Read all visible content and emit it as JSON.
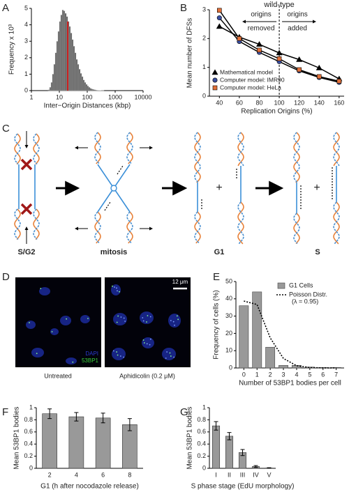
{
  "panel_labels": [
    "A",
    "B",
    "C",
    "D",
    "E",
    "F",
    "G"
  ],
  "diagram": {
    "stages": [
      "S/G2",
      "mitosis",
      "G1",
      "S"
    ],
    "plus": [
      "+",
      "+"
    ]
  },
  "micrographs": {
    "stains": [
      "DAPI",
      "53BP1"
    ],
    "scale_bar": "12 μm",
    "captions": [
      "Untreated",
      "Aphidicolin (0.2 μM)"
    ]
  },
  "chart_data": [
    {
      "type": "histogram",
      "xlabel": "Inter−Origin Distances (kbp)",
      "ylabel": "Frequency x 10³",
      "bins": [
        3.98,
        4.47,
        5.01,
        5.62,
        6.31,
        7.08,
        7.94,
        8.91,
        10.0,
        11.2,
        12.6,
        14.1,
        15.8,
        17.8,
        20.0,
        22.4,
        25.1,
        28.2,
        31.6,
        35.5,
        39.8,
        44.7,
        50.1,
        56.2,
        63.1,
        70.8,
        79.4,
        89.1,
        100,
        112,
        126,
        141,
        158,
        178,
        200,
        224,
        251,
        282,
        316,
        355,
        398
      ],
      "counts": [
        0.05,
        0.2,
        0.5,
        1.0,
        1.6,
        2.3,
        3.0,
        3.6,
        4.2,
        4.6,
        4.9,
        4.85,
        4.7,
        4.5,
        4.2,
        3.9,
        3.5,
        3.1,
        2.7,
        2.3,
        1.9,
        1.6,
        1.3,
        1.05,
        0.85,
        0.65,
        0.5,
        0.38,
        0.28,
        0.2,
        0.14,
        0.1,
        0.07,
        0.05,
        0.03,
        0.02,
        0.01,
        0.01,
        0.005,
        0.005
      ],
      "color": "#555555",
      "marker": {
        "x": 20,
        "color": "#d02020"
      },
      "xscale": "log",
      "xlim": [
        1,
        10000
      ],
      "xticks": [
        1,
        10,
        100,
        1000,
        10000
      ],
      "ylim": [
        0,
        5
      ],
      "yticks": [
        0,
        1,
        2,
        3,
        4,
        5
      ]
    },
    {
      "type": "line",
      "xlabel": "Replication Origins (%)",
      "ylabel": "Mean number of DFSs",
      "x": [
        40,
        60,
        80,
        100,
        120,
        140,
        160
      ],
      "line_color": "#000000",
      "series": [
        {
          "name": "Mathematical model",
          "marker": "triangle",
          "color": "#000000",
          "values": [
            2.42,
            2.05,
            1.8,
            1.5,
            1.27,
            0.98,
            0.6
          ]
        },
        {
          "name": "Computer model: IMR90",
          "marker": "circle",
          "color": "#3a4fa0",
          "values": [
            2.72,
            1.9,
            1.52,
            1.2,
            0.88,
            0.65,
            0.48
          ]
        },
        {
          "name": "Computer model: HeLa",
          "marker": "square",
          "color": "#e0703a",
          "values": [
            2.98,
            2.0,
            1.6,
            1.3,
            0.92,
            0.68,
            0.52
          ]
        }
      ],
      "vline": {
        "x": 100,
        "style": "dashed"
      },
      "annotations": {
        "top": "wild-type",
        "left": [
          "origins",
          "removed"
        ],
        "right": [
          "origins",
          "added"
        ]
      },
      "legend": "lower left",
      "xlim": [
        30,
        165
      ],
      "xticks": [
        40,
        60,
        80,
        100,
        120,
        140,
        160
      ],
      "ylim": [
        0,
        3
      ],
      "yticks": [
        0,
        1,
        2,
        3
      ]
    },
    {
      "type": "bar",
      "xlabel": "Number of 53BP1 bodies per cell",
      "ylabel": "Frequency of cells (%)",
      "x": [
        0,
        1,
        2,
        3,
        4,
        5,
        6,
        7
      ],
      "series": [
        {
          "name": "G1 Cells",
          "kind": "bar",
          "color": "#999999",
          "values": [
            36,
            44,
            12,
            1.5,
            1.5,
            0.5,
            0.3,
            0.3
          ]
        },
        {
          "name": "Poisson Distr.",
          "kind": "line",
          "style": "dotted",
          "color": "#000000",
          "values": [
            38.7,
            36.7,
            17.4,
            5.5,
            1.3,
            0.25,
            0.04,
            0.005
          ]
        }
      ],
      "legend_note": "(λ = 0.95)",
      "legend": "upper right",
      "xlim": [
        -0.6,
        7.6
      ],
      "xticks": [
        0,
        1,
        2,
        3,
        4,
        5,
        6,
        7
      ],
      "ylim": [
        0,
        50
      ],
      "yticks": [
        0,
        10,
        20,
        30,
        40,
        50
      ]
    },
    {
      "type": "bar",
      "xlabel": "G1 (h after nocodazole release)",
      "ylabel": "Mean 53BP1 bodies",
      "categories": [
        "2",
        "4",
        "6",
        "8"
      ],
      "values": [
        0.9,
        0.85,
        0.83,
        0.72
      ],
      "errors": [
        0.08,
        0.07,
        0.08,
        0.1
      ],
      "color": "#999999",
      "ylim": [
        0,
        1
      ],
      "yticks": [
        0,
        0.2,
        0.4,
        0.6,
        0.8,
        1
      ]
    },
    {
      "type": "bar",
      "xlabel": "S phase stage (EdU morphology)",
      "ylabel": "Mean 53BP1 bodies",
      "categories": [
        "I",
        "II",
        "III",
        "IV",
        "V"
      ],
      "values": [
        0.7,
        0.53,
        0.26,
        0.03,
        0.005
      ],
      "errors": [
        0.07,
        0.06,
        0.05,
        0.015,
        0.005
      ],
      "color": "#999999",
      "ylim": [
        0,
        1
      ],
      "yticks": [
        0,
        0.2,
        0.4,
        0.6,
        0.8,
        1
      ]
    }
  ]
}
